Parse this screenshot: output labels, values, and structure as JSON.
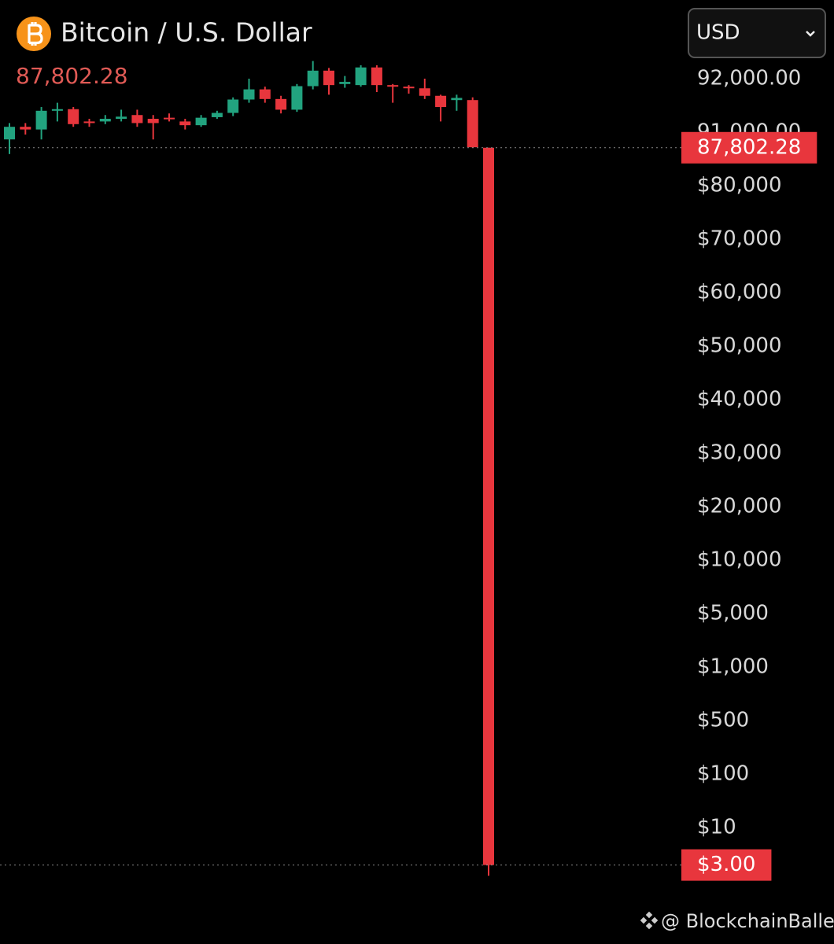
{
  "chart_data": {
    "type": "candlestick",
    "title": "Bitcoin / U.S. Dollar",
    "currency": "USD",
    "watermark": "@ BlockchainBaller",
    "series": [
      {
        "up_color": "#22a37f",
        "down_color": "#e8363d",
        "open": [
          89510,
          91100,
          91050,
          91400,
          91430,
          91200,
          91200,
          91250,
          91320,
          91250,
          91270,
          91200,
          91130,
          91280,
          91360,
          91610,
          91800,
          91620,
          91420,
          91860,
          92150,
          91900,
          91880,
          92210,
          91880,
          91850,
          91820,
          91680,
          91600,
          91600,
          87802.28
        ],
        "high": [
          91170,
          91170,
          91470,
          91550,
          91470,
          91250,
          91320,
          91420,
          91420,
          91320,
          91350,
          91250,
          91320,
          91400,
          91650,
          92000,
          91850,
          91680,
          91900,
          92330,
          92200,
          92050,
          92250,
          92250,
          91900,
          91880,
          92000,
          91700,
          91700,
          91650,
          87802.28
        ],
        "low": [
          86500,
          90500,
          89500,
          91200,
          91100,
          91100,
          91150,
          91200,
          91100,
          89500,
          91200,
          91050,
          91100,
          91250,
          91300,
          91550,
          91550,
          91350,
          91380,
          91800,
          91700,
          91830,
          91850,
          91750,
          91550,
          91720,
          91620,
          91200,
          91400,
          87800,
          1
        ],
        "close": [
          91100,
          91050,
          91400,
          91430,
          91150,
          91170,
          91250,
          91290,
          91170,
          91170,
          91250,
          91130,
          91270,
          91360,
          91610,
          91800,
          91620,
          91420,
          91860,
          92150,
          91880,
          91940,
          92210,
          91880,
          91850,
          91820,
          91680,
          91470,
          91640,
          87900,
          3
        ]
      }
    ],
    "ylim": [
      0,
      93000
    ],
    "yticks": [
      {
        "value": 92000,
        "label": "92,000.00"
      },
      {
        "value": 91000,
        "label": "91,000.00"
      },
      {
        "value": 80000,
        "label": "$80,000"
      },
      {
        "value": 70000,
        "label": "$70,000"
      },
      {
        "value": 60000,
        "label": "$60,000"
      },
      {
        "value": 50000,
        "label": "$50,000"
      },
      {
        "value": 40000,
        "label": "$40,000"
      },
      {
        "value": 30000,
        "label": "$30,000"
      },
      {
        "value": 20000,
        "label": "$20,000"
      },
      {
        "value": 10000,
        "label": "$10,000"
      },
      {
        "value": 5000,
        "label": "$5,000"
      },
      {
        "value": 1000,
        "label": "$1,000"
      },
      {
        "value": 500,
        "label": "$500"
      },
      {
        "value": 100,
        "label": "$100"
      },
      {
        "value": 10,
        "label": "$10"
      }
    ],
    "price_lines": [
      {
        "value": 87802.28,
        "label": "87,802.28"
      },
      {
        "value": 3,
        "label": "$3.00"
      }
    ]
  }
}
